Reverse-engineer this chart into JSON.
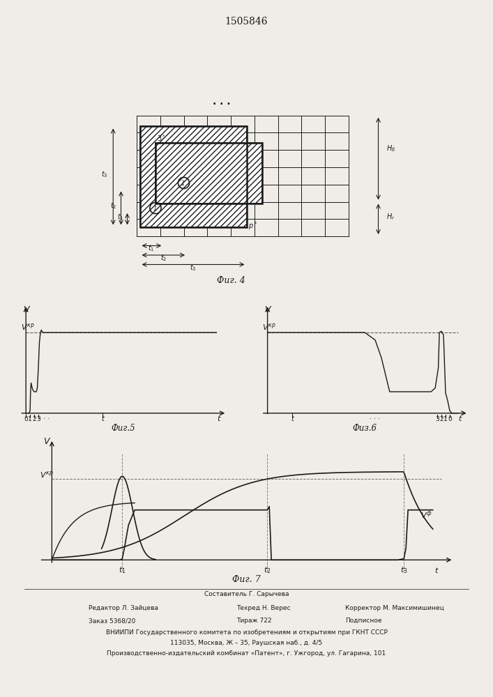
{
  "title": "1505846",
  "fig4_caption": "Фиг. 4",
  "fig5_caption": "Фиг.5",
  "fig6_caption": "Физ.6",
  "fig7_caption": "Фиг. 7",
  "bottom_text_line1": "Составитель Г. Сарычева",
  "bottom_text_line2_col1": "Редактор Л. Зайцева",
  "bottom_text_line2_col2": "Техред Н. Верес",
  "bottom_text_line2_col3": "Корректор М. Максимишинец",
  "bottom_text_line3_col1": "Заказ 5368/20",
  "bottom_text_line3_col2": "Тираж 722",
  "bottom_text_line3_col3": "Подписное",
  "bottom_text_line4": "ВНИИПИ Государственного комитета по изобретениям и открытиям при ГКНТ СССР",
  "bottom_text_line5": "113035, Москва, Ж – 35, Раушская наб., д. 4/5",
  "bottom_text_line6": "Производственно-издательский комбинат «Патент», г. Ужгород, ул. Гагарина, 101",
  "bg_color": "#f0ede8",
  "line_color": "#1a1a1a"
}
